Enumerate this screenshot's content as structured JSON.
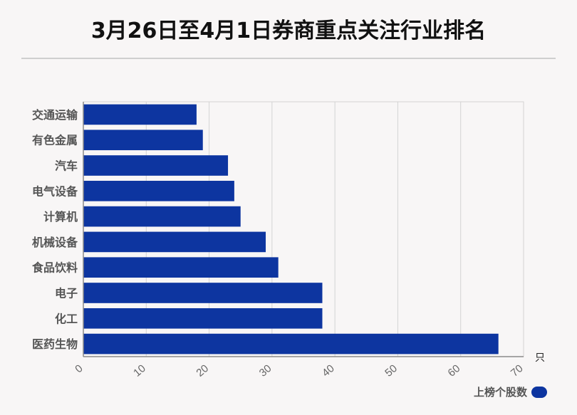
{
  "title": "3月26日至4月1日券商重点关注行业排名",
  "colors": {
    "bar": "#0d35a0",
    "grid": "#d3d3d3",
    "axis": "#8a8a8a"
  },
  "chart_data": {
    "type": "bar",
    "orientation": "horizontal",
    "categories": [
      "交通运输",
      "有色金属",
      "汽车",
      "电气设备",
      "计算机",
      "机械设备",
      "食品饮料",
      "电子",
      "化工",
      "医药生物"
    ],
    "series": [
      {
        "name": "上榜个股数",
        "values": [
          18,
          19,
          23,
          24,
          25,
          29,
          31,
          38,
          38,
          66
        ]
      }
    ],
    "xlim": [
      0,
      70
    ],
    "xticks": [
      0,
      10,
      20,
      30,
      40,
      50,
      60,
      70
    ],
    "xunit": "只",
    "grid": true,
    "legend": "bottom-right"
  }
}
